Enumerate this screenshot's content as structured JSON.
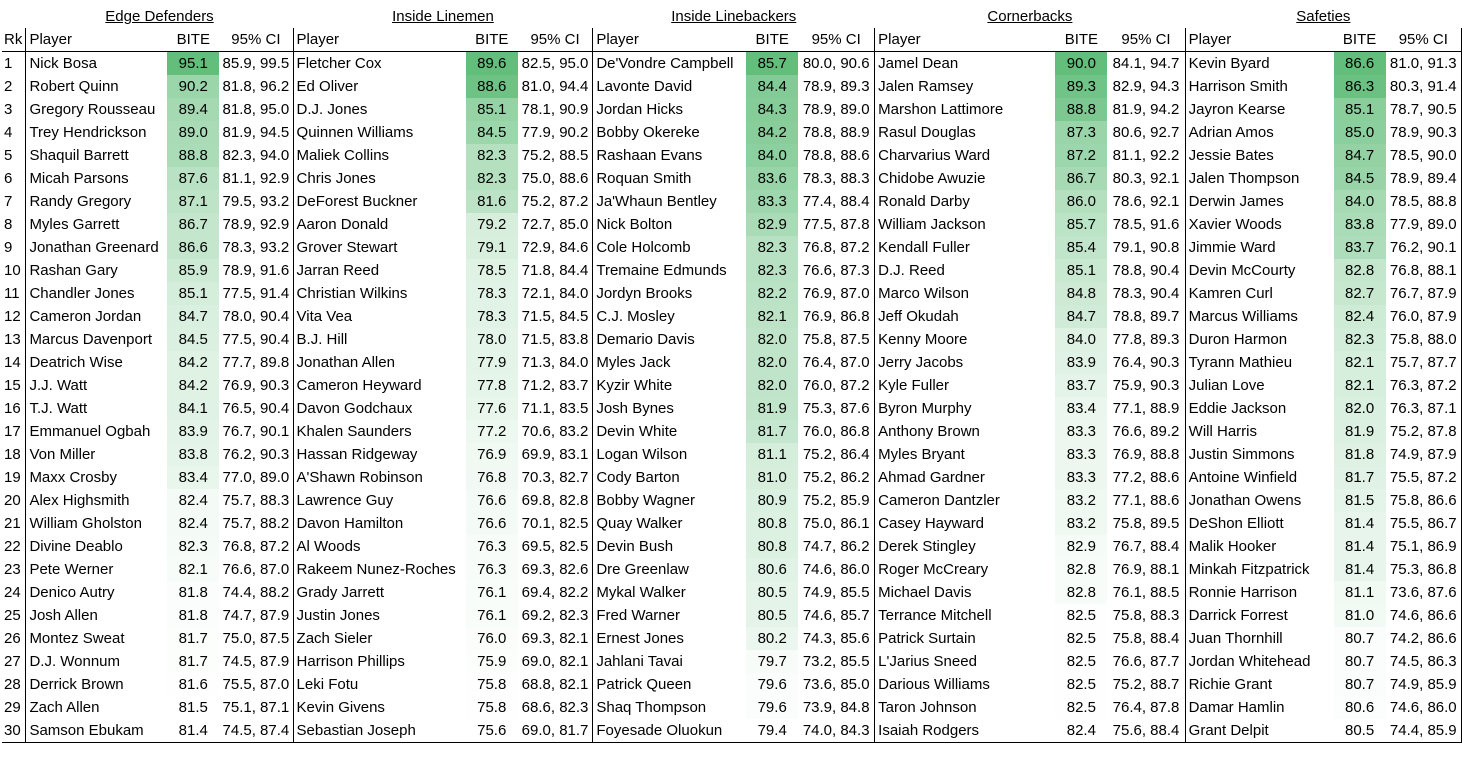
{
  "header": {
    "rank_label": "Rk",
    "player_label": "Player",
    "score_label": "BITE",
    "ci_label": "95% CI"
  },
  "groups": [
    {
      "title": "Edge Defenders",
      "rows": [
        {
          "player": "Nick Bosa",
          "bite": "95.1",
          "ci": "85.9, 99.5"
        },
        {
          "player": "Robert Quinn",
          "bite": "90.2",
          "ci": "81.8, 96.2"
        },
        {
          "player": "Gregory Rousseau",
          "bite": "89.4",
          "ci": "81.8, 95.0"
        },
        {
          "player": "Trey Hendrickson",
          "bite": "89.0",
          "ci": "81.9, 94.5"
        },
        {
          "player": "Shaquil Barrett",
          "bite": "88.8",
          "ci": "82.3, 94.0"
        },
        {
          "player": "Micah Parsons",
          "bite": "87.6",
          "ci": "81.1, 92.9"
        },
        {
          "player": "Randy Gregory",
          "bite": "87.1",
          "ci": "79.5, 93.2"
        },
        {
          "player": "Myles Garrett",
          "bite": "86.7",
          "ci": "78.9, 92.9"
        },
        {
          "player": "Jonathan Greenard",
          "bite": "86.6",
          "ci": "78.3, 93.2"
        },
        {
          "player": "Rashan Gary",
          "bite": "85.9",
          "ci": "78.9, 91.6"
        },
        {
          "player": "Chandler Jones",
          "bite": "85.1",
          "ci": "77.5, 91.4"
        },
        {
          "player": "Cameron Jordan",
          "bite": "84.7",
          "ci": "78.0, 90.4"
        },
        {
          "player": "Marcus Davenport",
          "bite": "84.5",
          "ci": "77.5, 90.4"
        },
        {
          "player": "Deatrich Wise",
          "bite": "84.2",
          "ci": "77.7, 89.8"
        },
        {
          "player": "J.J. Watt",
          "bite": "84.2",
          "ci": "76.9, 90.3"
        },
        {
          "player": "T.J. Watt",
          "bite": "84.1",
          "ci": "76.5, 90.4"
        },
        {
          "player": "Emmanuel Ogbah",
          "bite": "83.9",
          "ci": "76.7, 90.1"
        },
        {
          "player": "Von Miller",
          "bite": "83.8",
          "ci": "76.2, 90.3"
        },
        {
          "player": "Maxx Crosby",
          "bite": "83.4",
          "ci": "77.0, 89.0"
        },
        {
          "player": "Alex Highsmith",
          "bite": "82.4",
          "ci": "75.7, 88.3"
        },
        {
          "player": "William Gholston",
          "bite": "82.4",
          "ci": "75.7, 88.2"
        },
        {
          "player": "Divine Deablo",
          "bite": "82.3",
          "ci": "76.8, 87.2"
        },
        {
          "player": "Pete Werner",
          "bite": "82.1",
          "ci": "76.6, 87.0"
        },
        {
          "player": "Denico Autry",
          "bite": "81.8",
          "ci": "74.4, 88.2"
        },
        {
          "player": "Josh Allen",
          "bite": "81.8",
          "ci": "74.7, 87.9"
        },
        {
          "player": "Montez Sweat",
          "bite": "81.7",
          "ci": "75.0, 87.5"
        },
        {
          "player": "D.J. Wonnum",
          "bite": "81.7",
          "ci": "74.5, 87.9"
        },
        {
          "player": "Derrick Brown",
          "bite": "81.6",
          "ci": "75.5, 87.0"
        },
        {
          "player": "Zach Allen",
          "bite": "81.5",
          "ci": "75.1, 87.1"
        },
        {
          "player": "Samson Ebukam",
          "bite": "81.4",
          "ci": "74.5, 87.4"
        }
      ]
    },
    {
      "title": "Inside Linemen",
      "rows": [
        {
          "player": "Fletcher Cox",
          "bite": "89.6",
          "ci": "82.5, 95.0"
        },
        {
          "player": "Ed Oliver",
          "bite": "88.6",
          "ci": "81.0, 94.4"
        },
        {
          "player": "D.J. Jones",
          "bite": "85.1",
          "ci": "78.1, 90.9"
        },
        {
          "player": "Quinnen Williams",
          "bite": "84.5",
          "ci": "77.9, 90.2"
        },
        {
          "player": "Maliek Collins",
          "bite": "82.3",
          "ci": "75.2, 88.5"
        },
        {
          "player": "Chris Jones",
          "bite": "82.3",
          "ci": "75.0, 88.6"
        },
        {
          "player": "DeForest Buckner",
          "bite": "81.6",
          "ci": "75.2, 87.2"
        },
        {
          "player": "Aaron Donald",
          "bite": "79.2",
          "ci": "72.7, 85.0"
        },
        {
          "player": "Grover Stewart",
          "bite": "79.1",
          "ci": "72.9, 84.6"
        },
        {
          "player": "Jarran Reed",
          "bite": "78.5",
          "ci": "71.8, 84.4"
        },
        {
          "player": "Christian Wilkins",
          "bite": "78.3",
          "ci": "72.1, 84.0"
        },
        {
          "player": "Vita Vea",
          "bite": "78.3",
          "ci": "71.5, 84.5"
        },
        {
          "player": "B.J. Hill",
          "bite": "78.0",
          "ci": "71.5, 83.8"
        },
        {
          "player": "Jonathan Allen",
          "bite": "77.9",
          "ci": "71.3, 84.0"
        },
        {
          "player": "Cameron Heyward",
          "bite": "77.8",
          "ci": "71.2, 83.7"
        },
        {
          "player": "Davon Godchaux",
          "bite": "77.6",
          "ci": "71.1, 83.5"
        },
        {
          "player": "Khalen Saunders",
          "bite": "77.2",
          "ci": "70.6, 83.2"
        },
        {
          "player": "Hassan Ridgeway",
          "bite": "76.9",
          "ci": "69.9, 83.1"
        },
        {
          "player": "A'Shawn Robinson",
          "bite": "76.8",
          "ci": "70.3, 82.7"
        },
        {
          "player": "Lawrence Guy",
          "bite": "76.6",
          "ci": "69.8, 82.8"
        },
        {
          "player": "Davon Hamilton",
          "bite": "76.6",
          "ci": "70.1, 82.5"
        },
        {
          "player": "Al Woods",
          "bite": "76.3",
          "ci": "69.5, 82.5"
        },
        {
          "player": "Rakeem Nunez-Roches",
          "bite": "76.3",
          "ci": "69.3, 82.6"
        },
        {
          "player": "Grady Jarrett",
          "bite": "76.1",
          "ci": "69.4, 82.2"
        },
        {
          "player": "Justin Jones",
          "bite": "76.1",
          "ci": "69.2, 82.3"
        },
        {
          "player": "Zach Sieler",
          "bite": "76.0",
          "ci": "69.3, 82.1"
        },
        {
          "player": "Harrison Phillips",
          "bite": "75.9",
          "ci": "69.0, 82.1"
        },
        {
          "player": "Leki Fotu",
          "bite": "75.8",
          "ci": "68.8, 82.1"
        },
        {
          "player": "Kevin Givens",
          "bite": "75.8",
          "ci": "68.6, 82.3"
        },
        {
          "player": "Sebastian Joseph",
          "bite": "75.6",
          "ci": "69.0, 81.7"
        }
      ]
    },
    {
      "title": "Inside Linebackers",
      "rows": [
        {
          "player": "De'Vondre Campbell",
          "bite": "85.7",
          "ci": "80.0, 90.6"
        },
        {
          "player": "Lavonte David",
          "bite": "84.4",
          "ci": "78.9, 89.3"
        },
        {
          "player": "Jordan Hicks",
          "bite": "84.3",
          "ci": "78.9, 89.0"
        },
        {
          "player": "Bobby Okereke",
          "bite": "84.2",
          "ci": "78.8, 88.9"
        },
        {
          "player": "Rashaan Evans",
          "bite": "84.0",
          "ci": "78.8, 88.6"
        },
        {
          "player": "Roquan Smith",
          "bite": "83.6",
          "ci": "78.3, 88.3"
        },
        {
          "player": "Ja'Whaun Bentley",
          "bite": "83.3",
          "ci": "77.4, 88.4"
        },
        {
          "player": "Nick Bolton",
          "bite": "82.9",
          "ci": "77.5, 87.8"
        },
        {
          "player": "Cole Holcomb",
          "bite": "82.3",
          "ci": "76.8, 87.2"
        },
        {
          "player": "Tremaine Edmunds",
          "bite": "82.3",
          "ci": "76.6, 87.3"
        },
        {
          "player": "Jordyn Brooks",
          "bite": "82.2",
          "ci": "76.9, 87.0"
        },
        {
          "player": "C.J. Mosley",
          "bite": "82.1",
          "ci": "76.9, 86.8"
        },
        {
          "player": "Demario Davis",
          "bite": "82.0",
          "ci": "75.8, 87.5"
        },
        {
          "player": "Myles Jack",
          "bite": "82.0",
          "ci": "76.4, 87.0"
        },
        {
          "player": "Kyzir White",
          "bite": "82.0",
          "ci": "76.0, 87.2"
        },
        {
          "player": "Josh Bynes",
          "bite": "81.9",
          "ci": "75.3, 87.6"
        },
        {
          "player": "Devin White",
          "bite": "81.7",
          "ci": "76.0, 86.8"
        },
        {
          "player": "Logan Wilson",
          "bite": "81.1",
          "ci": "75.2, 86.4"
        },
        {
          "player": "Cody Barton",
          "bite": "81.0",
          "ci": "75.2, 86.2"
        },
        {
          "player": "Bobby Wagner",
          "bite": "80.9",
          "ci": "75.2, 85.9"
        },
        {
          "player": "Quay Walker",
          "bite": "80.8",
          "ci": "75.0, 86.1"
        },
        {
          "player": "Devin Bush",
          "bite": "80.8",
          "ci": "74.7, 86.2"
        },
        {
          "player": "Dre Greenlaw",
          "bite": "80.6",
          "ci": "74.6, 86.0"
        },
        {
          "player": "Mykal Walker",
          "bite": "80.5",
          "ci": "74.9, 85.5"
        },
        {
          "player": "Fred Warner",
          "bite": "80.5",
          "ci": "74.6, 85.7"
        },
        {
          "player": "Ernest Jones",
          "bite": "80.2",
          "ci": "74.3, 85.6"
        },
        {
          "player": "Jahlani Tavai",
          "bite": "79.7",
          "ci": "73.2, 85.5"
        },
        {
          "player": "Patrick Queen",
          "bite": "79.6",
          "ci": "73.6, 85.0"
        },
        {
          "player": "Shaq Thompson",
          "bite": "79.6",
          "ci": "73.9, 84.8"
        },
        {
          "player": "Foyesade Oluokun",
          "bite": "79.4",
          "ci": "74.0, 84.3"
        }
      ]
    },
    {
      "title": "Cornerbacks",
      "rows": [
        {
          "player": "Jamel Dean",
          "bite": "90.0",
          "ci": "84.1, 94.7"
        },
        {
          "player": "Jalen Ramsey",
          "bite": "89.3",
          "ci": "82.9, 94.3"
        },
        {
          "player": "Marshon Lattimore",
          "bite": "88.8",
          "ci": "81.9, 94.2"
        },
        {
          "player": "Rasul Douglas",
          "bite": "87.3",
          "ci": "80.6, 92.7"
        },
        {
          "player": "Charvarius Ward",
          "bite": "87.2",
          "ci": "81.1, 92.2"
        },
        {
          "player": "Chidobe Awuzie",
          "bite": "86.7",
          "ci": "80.3, 92.1"
        },
        {
          "player": "Ronald Darby",
          "bite": "86.0",
          "ci": "78.6, 92.1"
        },
        {
          "player": "William Jackson",
          "bite": "85.7",
          "ci": "78.5, 91.6"
        },
        {
          "player": "Kendall Fuller",
          "bite": "85.4",
          "ci": "79.1, 90.8"
        },
        {
          "player": "D.J. Reed",
          "bite": "85.1",
          "ci": "78.8, 90.4"
        },
        {
          "player": "Marco Wilson",
          "bite": "84.8",
          "ci": "78.3, 90.4"
        },
        {
          "player": "Jeff Okudah",
          "bite": "84.7",
          "ci": "78.8, 89.7"
        },
        {
          "player": "Kenny Moore",
          "bite": "84.0",
          "ci": "77.8, 89.3"
        },
        {
          "player": "Jerry Jacobs",
          "bite": "83.9",
          "ci": "76.4, 90.3"
        },
        {
          "player": "Kyle Fuller",
          "bite": "83.7",
          "ci": "75.9, 90.3"
        },
        {
          "player": "Byron Murphy",
          "bite": "83.4",
          "ci": "77.1, 88.9"
        },
        {
          "player": "Anthony Brown",
          "bite": "83.3",
          "ci": "76.6, 89.2"
        },
        {
          "player": "Myles Bryant",
          "bite": "83.3",
          "ci": "76.9, 88.8"
        },
        {
          "player": "Ahmad Gardner",
          "bite": "83.3",
          "ci": "77.2, 88.6"
        },
        {
          "player": "Cameron Dantzler",
          "bite": "83.2",
          "ci": "77.1, 88.6"
        },
        {
          "player": "Casey Hayward",
          "bite": "83.2",
          "ci": "75.8, 89.5"
        },
        {
          "player": "Derek Stingley",
          "bite": "82.9",
          "ci": "76.7, 88.4"
        },
        {
          "player": "Roger McCreary",
          "bite": "82.8",
          "ci": "76.9, 88.1"
        },
        {
          "player": "Michael Davis",
          "bite": "82.8",
          "ci": "76.1, 88.5"
        },
        {
          "player": "Terrance Mitchell",
          "bite": "82.5",
          "ci": "75.8, 88.3"
        },
        {
          "player": "Patrick Surtain",
          "bite": "82.5",
          "ci": "75.8, 88.4"
        },
        {
          "player": "L'Jarius Sneed",
          "bite": "82.5",
          "ci": "76.6, 87.7"
        },
        {
          "player": "Darious Williams",
          "bite": "82.5",
          "ci": "75.2, 88.7"
        },
        {
          "player": "Taron Johnson",
          "bite": "82.5",
          "ci": "76.4, 87.8"
        },
        {
          "player": "Isaiah Rodgers",
          "bite": "82.4",
          "ci": "75.6, 88.4"
        }
      ]
    },
    {
      "title": "Safeties",
      "rows": [
        {
          "player": "Kevin Byard",
          "bite": "86.6",
          "ci": "81.0, 91.3"
        },
        {
          "player": "Harrison Smith",
          "bite": "86.3",
          "ci": "80.3, 91.4"
        },
        {
          "player": "Jayron Kearse",
          "bite": "85.1",
          "ci": "78.7, 90.5"
        },
        {
          "player": "Adrian Amos",
          "bite": "85.0",
          "ci": "78.9, 90.3"
        },
        {
          "player": "Jessie Bates",
          "bite": "84.7",
          "ci": "78.5, 90.0"
        },
        {
          "player": "Jalen Thompson",
          "bite": "84.5",
          "ci": "78.9, 89.4"
        },
        {
          "player": "Derwin James",
          "bite": "84.0",
          "ci": "78.5, 88.8"
        },
        {
          "player": "Xavier Woods",
          "bite": "83.8",
          "ci": "77.9, 89.0"
        },
        {
          "player": "Jimmie Ward",
          "bite": "83.7",
          "ci": "76.2, 90.1"
        },
        {
          "player": "Devin McCourty",
          "bite": "82.8",
          "ci": "76.8, 88.1"
        },
        {
          "player": "Kamren Curl",
          "bite": "82.7",
          "ci": "76.7, 87.9"
        },
        {
          "player": "Marcus Williams",
          "bite": "82.4",
          "ci": "76.0, 87.9"
        },
        {
          "player": "Duron Harmon",
          "bite": "82.3",
          "ci": "75.8, 88.0"
        },
        {
          "player": "Tyrann Mathieu",
          "bite": "82.1",
          "ci": "75.7, 87.7"
        },
        {
          "player": "Julian Love",
          "bite": "82.1",
          "ci": "76.3, 87.2"
        },
        {
          "player": "Eddie Jackson",
          "bite": "82.0",
          "ci": "76.3, 87.1"
        },
        {
          "player": "Will Harris",
          "bite": "81.9",
          "ci": "75.2, 87.8"
        },
        {
          "player": "Justin Simmons",
          "bite": "81.8",
          "ci": "74.9, 87.9"
        },
        {
          "player": "Antoine Winfield",
          "bite": "81.7",
          "ci": "75.5, 87.2"
        },
        {
          "player": "Jonathan Owens",
          "bite": "81.5",
          "ci": "75.8, 86.6"
        },
        {
          "player": "DeShon Elliott",
          "bite": "81.4",
          "ci": "75.5, 86.7"
        },
        {
          "player": "Malik Hooker",
          "bite": "81.4",
          "ci": "75.1, 86.9"
        },
        {
          "player": "Minkah Fitzpatrick",
          "bite": "81.4",
          "ci": "75.3, 86.8"
        },
        {
          "player": "Ronnie Harrison",
          "bite": "81.1",
          "ci": "73.6, 87.6"
        },
        {
          "player": "Darrick Forrest",
          "bite": "81.0",
          "ci": "74.6, 86.6"
        },
        {
          "player": "Juan Thornhill",
          "bite": "80.7",
          "ci": "74.2, 86.6"
        },
        {
          "player": "Jordan Whitehead",
          "bite": "80.7",
          "ci": "74.5, 86.3"
        },
        {
          "player": "Richie Grant",
          "bite": "80.7",
          "ci": "74.9, 85.9"
        },
        {
          "player": "Damar Hamlin",
          "bite": "80.6",
          "ci": "74.6, 86.0"
        },
        {
          "player": "Grant Delpit",
          "bite": "80.5",
          "ci": "74.4, 85.9"
        }
      ]
    }
  ],
  "colors": {
    "scale_high": "#63be7b",
    "scale_low": "#ffffff",
    "border": "#000000"
  }
}
